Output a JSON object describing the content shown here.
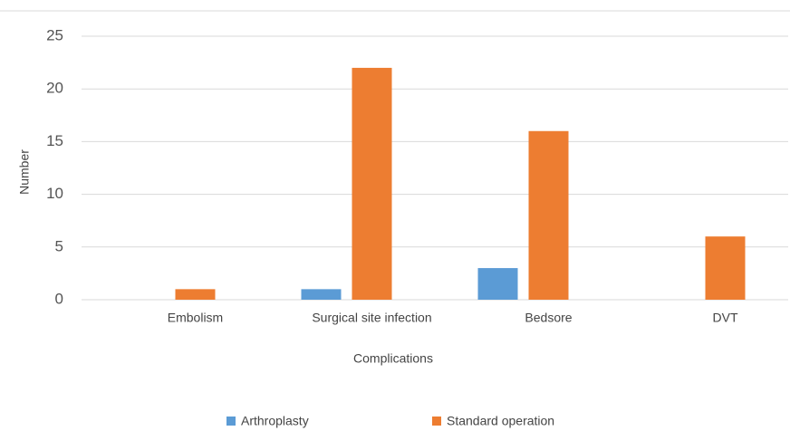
{
  "chart_data": {
    "type": "bar",
    "x_label": "Complications",
    "y_label": "Number",
    "categories": [
      "Embolism",
      "Surgical site infection",
      "Bedsore",
      "DVT"
    ],
    "series": [
      {
        "name": "Arthroplasty",
        "color": "#5b9bd5",
        "values": [
          0,
          1,
          3,
          0
        ]
      },
      {
        "name": "Standard operation",
        "color": "#ed7d31",
        "values": [
          1,
          22,
          16,
          6
        ]
      }
    ],
    "ylim": [
      0,
      25
    ],
    "yticks": [
      0,
      5,
      10,
      15,
      20,
      25
    ],
    "grid": true,
    "legend": "bottom"
  }
}
